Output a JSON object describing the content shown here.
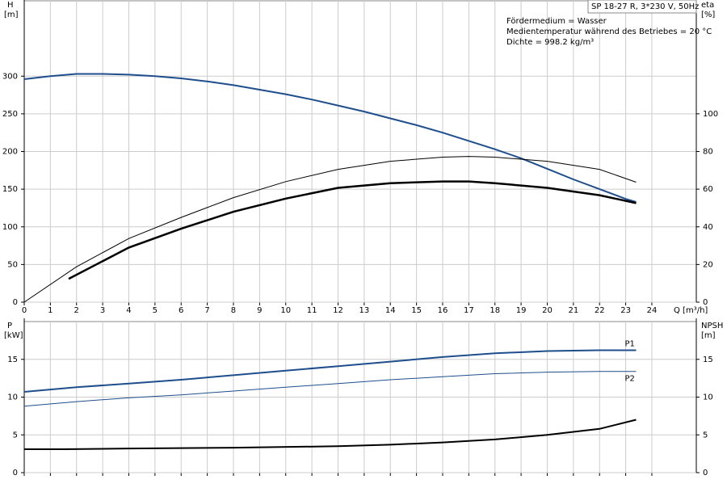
{
  "chart_data": [
    {
      "type": "line",
      "subtitle": "SP 18-27 R, 3*230 V, 50Hz",
      "annotations": [
        "Fördermedium = Wasser",
        "Medientemperatur während des Betriebes = 20 °C",
        "Dichte = 998.2 kg/m³"
      ],
      "ylabel": "H",
      "yunit": "[m]",
      "y2label": "eta",
      "y2unit": "[%]",
      "xlabel": "Q [m³/h]",
      "xlim": [
        0,
        25.7
      ],
      "xticks": [
        0,
        1,
        2,
        3,
        4,
        5,
        6,
        7,
        8,
        9,
        10,
        11,
        12,
        13,
        14,
        15,
        16,
        17,
        18,
        19,
        20,
        21,
        22,
        23,
        24
      ],
      "xtick_labels": true,
      "ylim": [
        0,
        400
      ],
      "yticks": [
        0,
        50,
        100,
        150,
        200,
        250,
        300
      ],
      "y2lim": [
        0,
        160
      ],
      "y2ticks": [
        0,
        20,
        40,
        60,
        80,
        100
      ],
      "grid": true,
      "series": [
        {
          "color": "#1f4e8c",
          "line_width": 2,
          "x": [
            0,
            1,
            2,
            3,
            4,
            5,
            6,
            7,
            8,
            9,
            10,
            11,
            12,
            13,
            14,
            15,
            16,
            17,
            18,
            19,
            20,
            21,
            22,
            23,
            23.4
          ],
          "values": [
            296,
            300,
            303,
            303,
            302,
            300,
            297,
            293,
            288,
            282,
            276,
            269,
            261,
            253,
            244,
            235,
            225,
            214,
            203,
            191,
            177,
            163,
            150,
            137,
            133
          ]
        },
        {
          "color": "#000000",
          "line_width": 1,
          "axis": "y2",
          "x": [
            0,
            2,
            4,
            6,
            8,
            10,
            12,
            14,
            16,
            17,
            18,
            20,
            22,
            23.4
          ],
          "values": [
            0,
            18.8,
            33.8,
            45,
            55.5,
            64,
            70.5,
            74.8,
            77,
            77.4,
            77,
            74.8,
            70.5,
            63.7
          ]
        },
        {
          "color": "#000000",
          "line_width": 2.5,
          "axis": "y2",
          "x": [
            1.7,
            4,
            6,
            8,
            10,
            12,
            14,
            16,
            17,
            18,
            20,
            22,
            23.4
          ],
          "values": [
            12.4,
            29,
            39,
            48,
            55,
            60.7,
            63.2,
            64.1,
            64.1,
            63.2,
            60.7,
            56.8,
            52.6
          ]
        }
      ]
    },
    {
      "type": "line",
      "ylabel": "P",
      "yunit": "[kW]",
      "y2label": "NPSH",
      "y2unit": "[m]",
      "xlim": [
        0,
        25.7
      ],
      "xticks": [
        0,
        1,
        2,
        3,
        4,
        5,
        6,
        7,
        8,
        9,
        10,
        11,
        12,
        13,
        14,
        15,
        16,
        17,
        18,
        19,
        20,
        21,
        22,
        23,
        24
      ],
      "xtick_labels": false,
      "ylim": [
        0,
        20
      ],
      "yticks": [
        0,
        5,
        10,
        15
      ],
      "y2lim": [
        0,
        20
      ],
      "y2ticks": [
        0,
        5,
        10,
        15
      ],
      "grid": true,
      "series": [
        {
          "name": "P1",
          "color": "#1f4e8c",
          "line_width": 2,
          "x": [
            0,
            2,
            4,
            6,
            8,
            10,
            12,
            14,
            16,
            18,
            20,
            22,
            23.4
          ],
          "values": [
            10.7,
            11.3,
            11.8,
            12.3,
            12.9,
            13.5,
            14.1,
            14.7,
            15.3,
            15.8,
            16.1,
            16.2,
            16.2
          ]
        },
        {
          "name": "P2",
          "color": "#1f4e8c",
          "line_width": 1,
          "x": [
            0,
            2,
            4,
            6,
            8,
            10,
            12,
            14,
            16,
            18,
            20,
            22,
            23.4
          ],
          "values": [
            8.8,
            9.4,
            9.9,
            10.3,
            10.8,
            11.3,
            11.8,
            12.3,
            12.7,
            13.1,
            13.3,
            13.4,
            13.4
          ]
        },
        {
          "color": "#000000",
          "line_width": 2,
          "axis": "y2",
          "x": [
            0,
            1.5,
            4,
            8,
            12,
            14,
            16,
            18,
            20,
            22,
            23.4
          ],
          "values": [
            3.1,
            3.1,
            3.2,
            3.3,
            3.5,
            3.7,
            4.0,
            4.4,
            5.0,
            5.8,
            7.0
          ]
        }
      ]
    }
  ]
}
